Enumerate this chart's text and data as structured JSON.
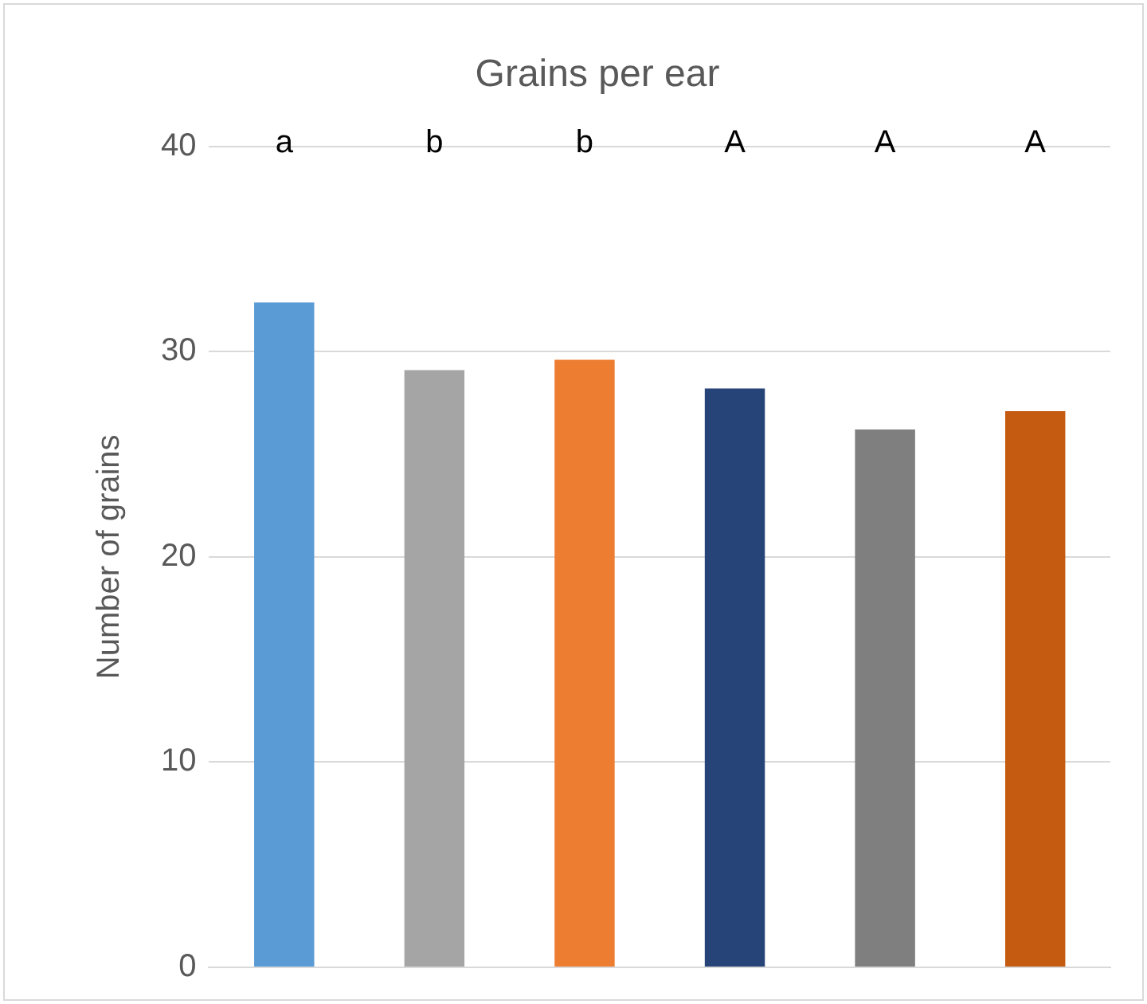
{
  "chart_data": {
    "type": "bar",
    "title": "Grains per ear",
    "ylabel": "Number of grains",
    "categories": [
      null,
      null,
      null,
      null,
      null,
      null
    ],
    "values": [
      32.4,
      29.1,
      29.6,
      28.2,
      26.2,
      27.1
    ],
    "colors": [
      "#5b9bd5",
      "#a5a5a5",
      "#ed7d31",
      "#264478",
      "#7f7f7f",
      "#c55a11"
    ],
    "ylim": [
      0,
      40
    ],
    "yticks": [
      0,
      10,
      20,
      30,
      40
    ],
    "grid": "y",
    "legend": false,
    "annotations": [
      "a",
      "b",
      "b",
      "A",
      "A",
      "A"
    ]
  }
}
